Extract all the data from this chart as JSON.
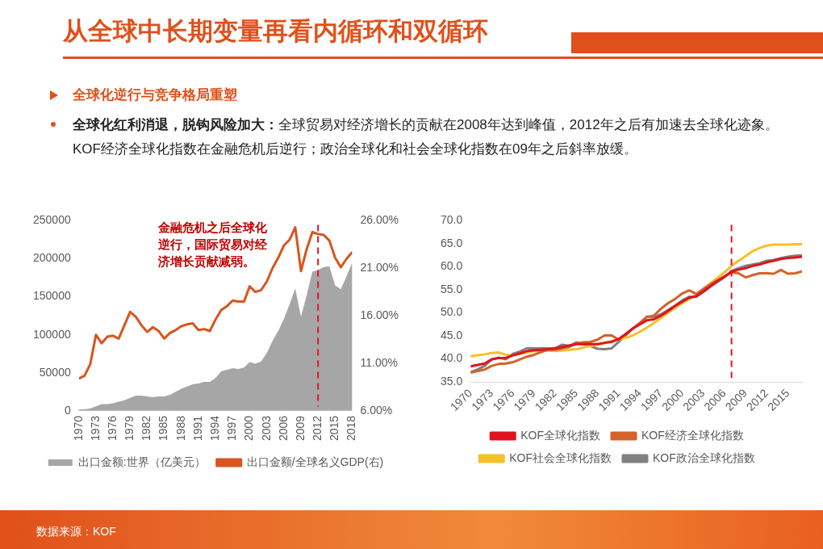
{
  "chart_data": [
    {
      "type": "line",
      "title": "从全球中长期变量再看内循环和双循环",
      "subtitle": "全球化逆行与竞争格局重塑",
      "annotations": [
        "金融危机之后全球化逆行，国际贸易对经济增长贡献减弱。",
        "全球化红利消退，脱钩风险加大：",
        "全球贸易对经济增长的贡献在2008年达到峰值，2012年之后有加速去全球化迹象。KOF经济全球化指数在金融危机后逆行；政治全球化和社会全球化指数在09年之后斜率放缓。"
      ],
      "x": [
        1970,
        1971,
        1972,
        1973,
        1974,
        1975,
        1976,
        1977,
        1978,
        1979,
        1980,
        1981,
        1982,
        1983,
        1984,
        1985,
        1986,
        1987,
        1988,
        1989,
        1990,
        1991,
        1992,
        1993,
        1994,
        1995,
        1996,
        1997,
        1998,
        1999,
        2000,
        2001,
        2002,
        2003,
        2004,
        2005,
        2006,
        2007,
        2008,
        2009,
        2010,
        2011,
        2012,
        2013,
        2014,
        2015,
        2016,
        2017,
        2018
      ],
      "xlim": [
        1970,
        2018
      ],
      "xticks": [
        1970,
        1973,
        1976,
        1979,
        1982,
        1985,
        1988,
        1991,
        1994,
        1997,
        2000,
        2003,
        2006,
        2009,
        2012,
        2015,
        2018
      ],
      "ylim": [
        0,
        250000
      ],
      "yticks": [
        0,
        50000,
        100000,
        150000,
        200000,
        250000
      ],
      "y2lim": [
        6,
        26
      ],
      "y2ticks": [
        {
          "value": 6,
          "label": "6.00%"
        },
        {
          "value": 11,
          "label": "11.00%"
        },
        {
          "value": 16,
          "label": "16.00%"
        },
        {
          "value": 21,
          "label": "21.00%"
        },
        {
          "value": 26,
          "label": "26.00%"
        }
      ],
      "legend": "bottom",
      "ref_lines": [
        {
          "axis": "x",
          "value": 2012,
          "color": "#e0141e",
          "line_style": "dashed"
        }
      ],
      "series": [
        {
          "type": "area",
          "name": "出口金额:世界（亿美元）",
          "color": "#a6a6a6",
          "values": [
            2000,
            2000,
            3000,
            6000,
            9000,
            9000,
            10000,
            12000,
            14000,
            17000,
            20000,
            20000,
            19000,
            18000,
            19000,
            19000,
            21000,
            25000,
            29000,
            32000,
            35000,
            36000,
            38000,
            38000,
            43000,
            52000,
            54000,
            56000,
            55000,
            57000,
            64000,
            62000,
            65000,
            76000,
            92000,
            105000,
            121000,
            140000,
            161000,
            124000,
            152000,
            183000,
            185000,
            189000,
            190000,
            165000,
            160000,
            177000,
            195000
          ]
        },
        {
          "name": "出口金额/全球名义GDP(右)",
          "color": "#d9541e",
          "axis": "y2",
          "values": [
            9.4,
            9.7,
            10.9,
            14.0,
            13.1,
            13.8,
            13.9,
            13.6,
            15.0,
            16.4,
            15.9,
            15.0,
            14.3,
            14.8,
            14.4,
            13.6,
            14.2,
            14.5,
            14.9,
            15.1,
            15.2,
            14.5,
            14.6,
            14.4,
            15.6,
            16.6,
            17.0,
            17.6,
            17.5,
            17.5,
            19.1,
            18.5,
            18.7,
            19.6,
            21.0,
            22.1,
            23.4,
            24.0,
            25.3,
            20.7,
            23.0,
            24.8,
            24.6,
            24.5,
            23.9,
            22.1,
            21.1,
            22.0,
            22.7
          ]
        }
      ]
    },
    {
      "type": "line",
      "annotations": [
        "数据来源：KOF"
      ],
      "x": [
        1970,
        1971,
        1972,
        1973,
        1974,
        1975,
        1976,
        1977,
        1978,
        1979,
        1980,
        1981,
        1982,
        1983,
        1984,
        1985,
        1986,
        1987,
        1988,
        1989,
        1990,
        1991,
        1992,
        1993,
        1994,
        1995,
        1996,
        1997,
        1998,
        1999,
        2000,
        2001,
        2002,
        2003,
        2004,
        2005,
        2006,
        2007,
        2008,
        2009,
        2010,
        2011,
        2012,
        2013,
        2014,
        2015,
        2016,
        2017
      ],
      "xlim": [
        1970,
        2017
      ],
      "xticks": [
        1970,
        1973,
        1976,
        1979,
        1982,
        1985,
        1988,
        1991,
        1994,
        1997,
        2000,
        2003,
        2006,
        2009,
        2012,
        2015
      ],
      "ylim": [
        35,
        70
      ],
      "yticks": [
        {
          "value": 35,
          "label": "35.0"
        },
        {
          "value": 40,
          "label": "40.0"
        },
        {
          "value": 45,
          "label": "45.0"
        },
        {
          "value": 50,
          "label": "50.0"
        },
        {
          "value": 55,
          "label": "55.0"
        },
        {
          "value": 60,
          "label": "60.0"
        },
        {
          "value": 65,
          "label": "65.0"
        },
        {
          "value": 70,
          "label": "70.0"
        }
      ],
      "legend": "bottom",
      "ref_lines": [
        {
          "axis": "x",
          "value": 2007,
          "color": "#e0141e",
          "line_style": "dashed"
        }
      ],
      "series": [
        {
          "name": "KOF全球化指数",
          "color": "#e0141e",
          "values": [
            38.4,
            38.7,
            39.0,
            39.9,
            40.2,
            40.2,
            40.8,
            41.2,
            41.7,
            41.9,
            42.0,
            42.1,
            42.3,
            42.6,
            42.9,
            43.2,
            43.2,
            43.2,
            43.2,
            43.5,
            43.7,
            44.3,
            45.4,
            46.6,
            47.5,
            48.4,
            48.6,
            49.4,
            50.4,
            51.5,
            52.4,
            53.3,
            53.6,
            54.7,
            55.8,
            56.9,
            57.9,
            58.9,
            59.4,
            59.7,
            60.2,
            60.5,
            61.0,
            61.3,
            61.7,
            61.9,
            62.0,
            62.2
          ]
        },
        {
          "name": "KOF经济全球化指数",
          "color": "#d4622a",
          "values": [
            37.0,
            37.4,
            37.7,
            38.5,
            38.9,
            39.0,
            39.3,
            39.9,
            40.5,
            40.9,
            41.5,
            42.0,
            42.0,
            42.3,
            42.6,
            43.4,
            43.6,
            43.7,
            44.2,
            45.1,
            45.1,
            44.2,
            45.4,
            46.6,
            47.8,
            49.1,
            49.4,
            50.9,
            52.1,
            53.0,
            54.2,
            54.9,
            54.1,
            55.2,
            56.2,
            57.1,
            57.9,
            58.8,
            58.6,
            57.7,
            58.2,
            58.6,
            58.6,
            58.5,
            59.3,
            58.5,
            58.6,
            59.0
          ]
        },
        {
          "name": "KOF社会全球化指数",
          "color": "#f5c02a",
          "values": [
            40.6,
            40.8,
            41.0,
            41.3,
            41.4,
            40.9,
            40.8,
            41.1,
            41.4,
            41.7,
            41.8,
            41.8,
            41.7,
            41.8,
            42.0,
            42.1,
            42.5,
            42.8,
            43.1,
            43.4,
            43.9,
            44.2,
            44.6,
            45.1,
            45.9,
            46.8,
            47.8,
            48.9,
            50.0,
            51.1,
            52.1,
            53.0,
            53.9,
            55.2,
            56.4,
            57.6,
            58.8,
            60.2,
            61.3,
            62.3,
            63.4,
            64.1,
            64.6,
            64.8,
            64.8,
            64.8,
            64.9,
            64.9
          ]
        },
        {
          "name": "KOF政治全球化指数",
          "color": "#808080",
          "values": [
            37.1,
            37.7,
            38.5,
            39.9,
            40.3,
            39.9,
            41.1,
            41.6,
            42.3,
            42.3,
            42.3,
            42.3,
            42.3,
            43.1,
            42.8,
            43.6,
            43.2,
            42.8,
            42.2,
            42.1,
            42.3,
            43.7,
            45.1,
            46.6,
            47.8,
            49.2,
            49.1,
            49.7,
            50.6,
            51.6,
            52.7,
            53.5,
            53.5,
            54.5,
            55.7,
            56.7,
            57.7,
            59.1,
            59.7,
            60.2,
            60.5,
            60.8,
            61.3,
            61.5,
            61.9,
            62.2,
            62.4,
            62.5
          ]
        }
      ]
    }
  ]
}
